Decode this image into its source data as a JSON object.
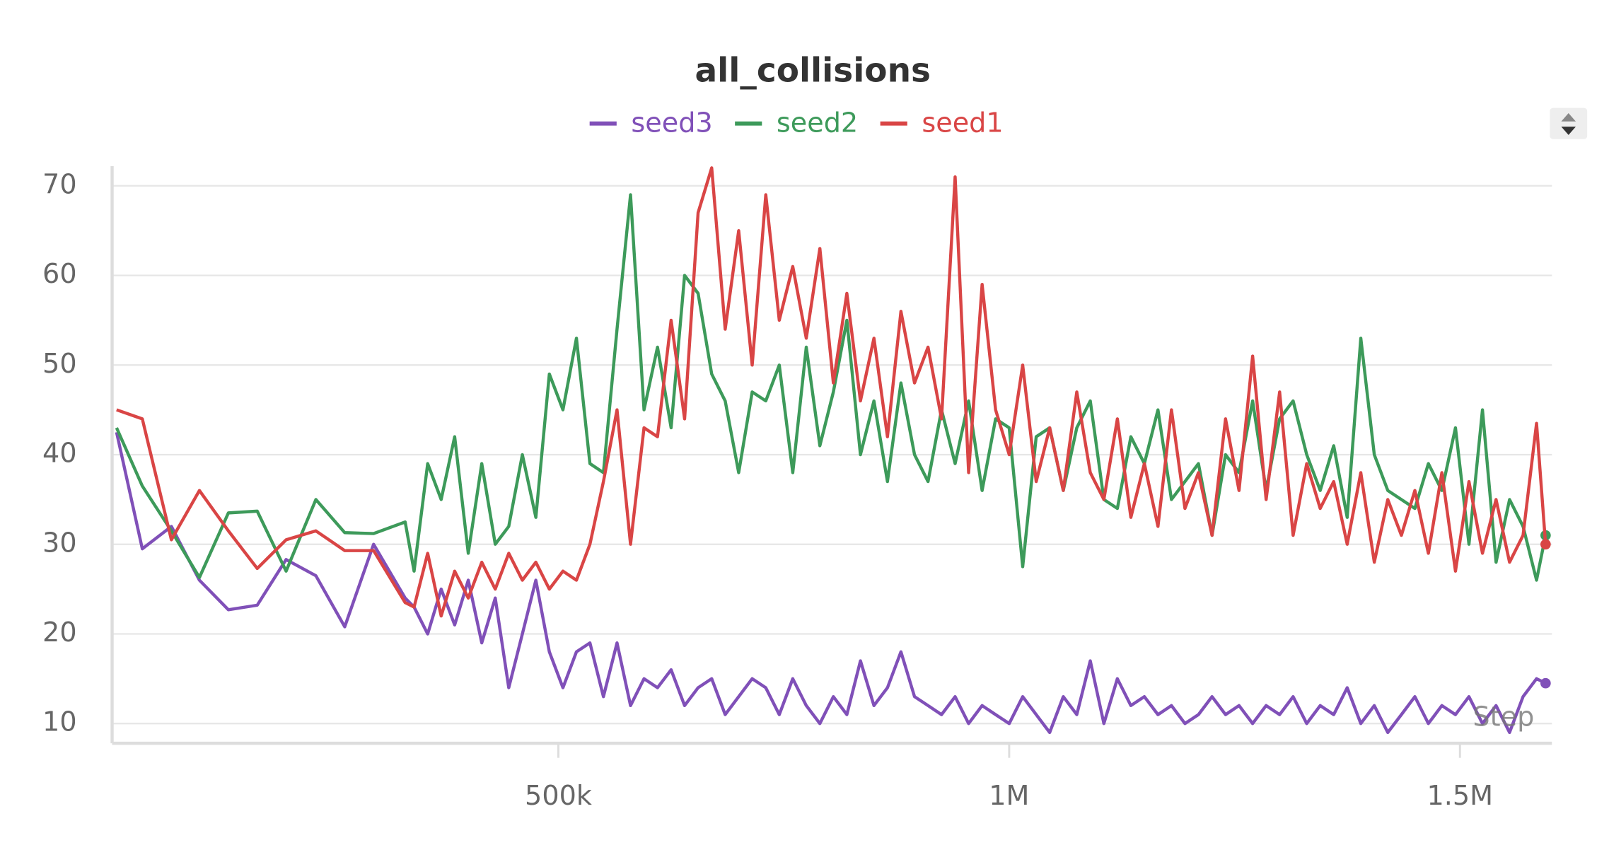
{
  "chart_data": {
    "type": "line",
    "title": "all_collisions",
    "x_label": "Step",
    "x": [
      10000,
      38500,
      70800,
      101800,
      134000,
      166000,
      198000,
      231000,
      263000,
      295000,
      330000,
      340000,
      355000,
      370000,
      385000,
      400000,
      415000,
      430000,
      445000,
      460000,
      475000,
      490000,
      505000,
      520000,
      535000,
      550000,
      565000,
      580000,
      595000,
      610000,
      625000,
      640000,
      655000,
      670000,
      685000,
      700000,
      715000,
      730000,
      745000,
      760000,
      775000,
      790000,
      805000,
      820000,
      835000,
      850000,
      865000,
      880000,
      895000,
      910000,
      925000,
      940000,
      955000,
      970000,
      985000,
      1000000,
      1015000,
      1030000,
      1045000,
      1060000,
      1075000,
      1090000,
      1105000,
      1120000,
      1135000,
      1150000,
      1165000,
      1180000,
      1195000,
      1210000,
      1225000,
      1240000,
      1255000,
      1270000,
      1285000,
      1300000,
      1315000,
      1330000,
      1345000,
      1360000,
      1375000,
      1390000,
      1405000,
      1420000,
      1435000,
      1450000,
      1465000,
      1480000,
      1495000,
      1510000,
      1525000,
      1540000,
      1555000,
      1570000,
      1585000,
      1595000
    ],
    "series": [
      {
        "name": "seed3",
        "color": "#8050b8",
        "values": [
          42.5,
          29.5,
          32,
          26,
          22.7,
          23.2,
          28.3,
          26.5,
          20.8,
          30,
          24,
          23,
          20,
          25,
          21,
          26,
          19,
          24,
          14,
          20,
          26,
          18,
          14,
          18,
          19,
          13,
          19,
          12,
          15,
          14,
          16,
          12,
          14,
          15,
          11,
          13,
          15,
          14,
          11,
          15,
          12,
          10,
          13,
          11,
          17,
          12,
          14,
          18,
          13,
          12,
          11,
          13,
          10,
          12,
          11,
          10,
          13,
          11,
          9,
          13,
          11,
          17,
          10,
          15,
          12,
          13,
          11,
          12,
          10,
          11,
          13,
          11,
          12,
          10,
          12,
          11,
          13,
          10,
          12,
          11,
          14,
          10,
          12,
          9,
          11,
          13,
          10,
          12,
          11,
          13,
          10,
          12,
          9,
          13,
          15,
          14.5
        ]
      },
      {
        "name": "seed2",
        "color": "#3d9a5a",
        "values": [
          43,
          36.5,
          31.5,
          26.3,
          33.5,
          33.7,
          27,
          35,
          31.3,
          31.2,
          32.5,
          27,
          39,
          35,
          42,
          29,
          39,
          30,
          32,
          40,
          33,
          49,
          45,
          53,
          39,
          38,
          54,
          69,
          45,
          52,
          43,
          60,
          58,
          49,
          46,
          38,
          47,
          46,
          50,
          38,
          52,
          41,
          47,
          55,
          40,
          46,
          37,
          48,
          40,
          37,
          45,
          39,
          46,
          36,
          44,
          43,
          27.5,
          42,
          43,
          36,
          43,
          46,
          35,
          34,
          42,
          39,
          45,
          35,
          37,
          39,
          31,
          40,
          38,
          46,
          36,
          44,
          46,
          40,
          36,
          41,
          33,
          53,
          40,
          36,
          35,
          34,
          39,
          36,
          43,
          30,
          45,
          28,
          35,
          32,
          26,
          31
        ]
      },
      {
        "name": "seed1",
        "color": "#d94545",
        "values": [
          45,
          44,
          30.5,
          36,
          31.5,
          27.3,
          30.5,
          31.5,
          29.3,
          29.3,
          23.5,
          23,
          29,
          22,
          27,
          24,
          28,
          25,
          29,
          26,
          28,
          25,
          27,
          26,
          30,
          37,
          45,
          30,
          43,
          42,
          55,
          44,
          67,
          72,
          54,
          65,
          50,
          69,
          55,
          61,
          53,
          63,
          48,
          58,
          46,
          53,
          42,
          56,
          48,
          52,
          44,
          71,
          38,
          59,
          45,
          40,
          50,
          37,
          43,
          36,
          47,
          38,
          35,
          44,
          33,
          39,
          32,
          45,
          34,
          38,
          31,
          44,
          36,
          51,
          35,
          47,
          31,
          39,
          34,
          37,
          30,
          38,
          28,
          35,
          31,
          36,
          29,
          38,
          27,
          37,
          29,
          35,
          28,
          31,
          43.5,
          30
        ]
      }
    ],
    "xlim": [
      5000,
      1602000
    ],
    "ylim": [
      7.8,
      72.2
    ],
    "xticks": [
      {
        "value": 500000,
        "label": "500k"
      },
      {
        "value": 1000000,
        "label": "1M"
      },
      {
        "value": 1500000,
        "label": "1.5M"
      }
    ],
    "yticks": [
      10,
      20,
      30,
      40,
      50,
      60,
      70
    ],
    "grid": true
  }
}
